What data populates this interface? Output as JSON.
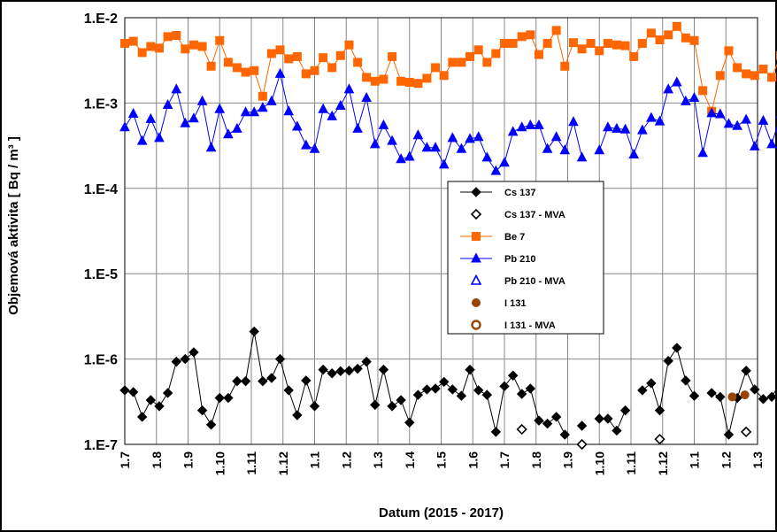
{
  "chart_data": {
    "type": "scatter",
    "xlabel": "Datum  (2015 - 2017)",
    "ylabel": "Objemová aktivita  [ Bq / m³ ]",
    "yscale": "log",
    "ylim": [
      1e-07,
      0.01
    ],
    "ytick_labels": [
      "1.E-2",
      "1.E-3",
      "1.E-4",
      "1.E-5",
      "1.E-6",
      "1.E-7"
    ],
    "xtick_labels": [
      "1.7",
      "1.8",
      "1.9",
      "1.10",
      "1.11",
      "1.12",
      "1.1",
      "1.2",
      "1.3",
      "1.4",
      "1.5",
      "1.6",
      "1.7",
      "1.8",
      "1.9",
      "1.10",
      "1.11",
      "1.12",
      "1.1",
      "1.2",
      "1.3"
    ],
    "grid": true,
    "legend_position": "center",
    "colors": {
      "cs137": "#000000",
      "be7": "#ff6600",
      "pb210": "#0000ff",
      "i131": "#994400"
    },
    "series": [
      {
        "name": "Cs 137",
        "key": "cs137",
        "marker": "diamond",
        "filled": true,
        "line": true,
        "t": [
          0,
          0.27,
          0.55,
          0.82,
          1.09,
          1.36,
          1.63,
          1.91,
          2.18,
          2.45,
          2.73,
          3.0,
          3.27,
          3.55,
          3.82,
          4.09,
          4.36,
          4.64,
          4.91,
          5.18,
          5.45,
          5.73,
          6.0,
          6.27,
          6.55,
          6.82,
          7.09,
          7.36,
          7.64,
          7.91,
          8.18,
          8.45,
          8.73,
          9.0,
          9.27,
          9.55,
          9.82,
          10.09,
          10.36,
          10.64,
          10.91,
          11.18,
          11.45,
          11.73,
          12.0,
          12.27,
          12.55,
          12.82,
          13.09,
          13.36,
          13.64,
          13.91,
          14.18,
          14.45,
          14.73,
          15.0,
          15.27,
          15.55,
          15.82,
          16.09,
          16.36,
          16.64,
          16.91,
          17.18,
          17.45,
          17.73,
          18.0,
          18.27,
          18.55,
          18.82,
          19.09,
          19.36,
          19.64,
          19.91,
          20.18,
          20.45,
          20.73
        ],
        "values": [
          4.3e-07,
          4.1e-07,
          2.1e-07,
          3.3e-07,
          2.8e-07,
          4e-07,
          9.3e-07,
          1e-06,
          1.2e-06,
          2.5e-07,
          1.7e-07,
          3.5e-07,
          3.5e-07,
          5.5e-07,
          5.5e-07,
          2.1e-06,
          5.5e-07,
          6e-07,
          1e-06,
          4.3e-07,
          2.2e-07,
          5.6e-07,
          2.8e-07,
          7.5e-07,
          6.8e-07,
          7.2e-07,
          7.3e-07,
          7.7e-07,
          9.3e-07,
          2.9e-07,
          7.5e-07,
          2.8e-07,
          3.3e-07,
          1.8e-07,
          3.8e-07,
          4.4e-07,
          4.5e-07,
          5.4e-07,
          4.4e-07,
          3.7e-07,
          7.5e-07,
          4.3e-07,
          3.8e-07,
          1.4e-07,
          4.8e-07,
          6.4e-07,
          3.9e-07,
          4.5e-07,
          1.9e-07,
          1.75e-07,
          2.1e-07,
          1.3e-07,
          null,
          1.65e-07,
          null,
          2e-07,
          2e-07,
          1.45e-07,
          2.5e-07,
          null,
          4.3e-07,
          5.2e-07,
          2.5e-07,
          9.5e-07,
          1.35e-06,
          5.6e-07,
          3.7e-07,
          null,
          4e-07,
          3.6e-07,
          1.3e-07,
          3.5e-07,
          7.3e-07,
          4.4e-07,
          3.4e-07,
          3.6e-07,
          5.4e-07
        ]
      },
      {
        "name": "Cs 137 - MVA",
        "key": "cs137",
        "marker": "diamond",
        "filled": false,
        "line": false,
        "t": [
          12.55,
          14.45,
          15.55,
          16.91,
          19.64
        ],
        "values": [
          1.5e-07,
          1e-07,
          null,
          1.15e-07,
          1.4e-07
        ]
      },
      {
        "name": "Be 7",
        "key": "be7",
        "marker": "square",
        "filled": true,
        "line": true,
        "t": [
          0,
          0.27,
          0.55,
          0.82,
          1.09,
          1.36,
          1.63,
          1.91,
          2.18,
          2.45,
          2.73,
          3.0,
          3.27,
          3.55,
          3.82,
          4.09,
          4.36,
          4.64,
          4.91,
          5.18,
          5.45,
          5.73,
          6.0,
          6.27,
          6.55,
          6.82,
          7.09,
          7.36,
          7.64,
          7.91,
          8.18,
          8.45,
          8.73,
          9.0,
          9.27,
          9.55,
          9.82,
          10.09,
          10.36,
          10.64,
          10.91,
          11.18,
          11.45,
          11.73,
          12.0,
          12.27,
          12.55,
          12.82,
          13.09,
          13.36,
          13.64,
          13.91,
          14.18,
          14.45,
          14.73,
          15.0,
          15.27,
          15.55,
          15.82,
          16.09,
          16.36,
          16.64,
          16.91,
          17.18,
          17.45,
          17.73,
          18.0,
          18.27,
          18.55,
          18.82,
          19.09,
          19.36,
          19.64,
          19.91,
          20.18,
          20.45,
          20.73
        ],
        "values": [
          0.005,
          0.0053,
          0.0039,
          0.0046,
          0.0044,
          0.006,
          0.0062,
          0.0043,
          0.0048,
          0.0046,
          0.0027,
          0.0054,
          0.003,
          0.0026,
          0.0023,
          0.0024,
          0.0012,
          0.0038,
          0.0042,
          0.0033,
          0.0035,
          0.0022,
          0.0024,
          0.0034,
          0.0026,
          0.0036,
          0.0048,
          0.003,
          0.002,
          0.0018,
          0.0019,
          0.0035,
          0.0018,
          0.00175,
          0.0017,
          0.00195,
          0.0026,
          0.0021,
          0.003,
          0.003,
          0.0035,
          0.0042,
          0.003,
          0.0038,
          0.005,
          0.005,
          0.006,
          0.0063,
          0.0037,
          0.005,
          0.0071,
          0.0027,
          0.0051,
          0.0043,
          0.005,
          0.0041,
          0.005,
          0.0048,
          0.0047,
          0.0035,
          0.005,
          0.0066,
          0.0055,
          0.0063,
          0.0079,
          0.0058,
          0.0054,
          0.0014,
          0.0008,
          0.0021,
          0.0041,
          0.0026,
          0.0022,
          0.0021,
          0.0025,
          0.002,
          0.0036
        ]
      },
      {
        "name": "Pb 210",
        "key": "pb210",
        "marker": "triangle",
        "filled": true,
        "line": true,
        "t": [
          0,
          0.27,
          0.55,
          0.82,
          1.09,
          1.36,
          1.63,
          1.91,
          2.18,
          2.45,
          2.73,
          3.0,
          3.27,
          3.55,
          3.82,
          4.09,
          4.36,
          4.64,
          4.91,
          5.18,
          5.45,
          5.73,
          6.0,
          6.27,
          6.55,
          6.82,
          7.09,
          7.36,
          7.64,
          7.91,
          8.18,
          8.45,
          8.73,
          9.0,
          9.27,
          9.55,
          9.82,
          10.09,
          10.36,
          10.64,
          10.91,
          11.18,
          11.45,
          11.73,
          12.0,
          12.27,
          12.55,
          12.82,
          13.09,
          13.36,
          13.64,
          13.91,
          14.18,
          14.45,
          14.73,
          15.0,
          15.27,
          15.55,
          15.82,
          16.09,
          16.36,
          16.64,
          16.91,
          17.18,
          17.45,
          17.73,
          18.0,
          18.27,
          18.55,
          18.82,
          19.09,
          19.36,
          19.64,
          19.91,
          20.18,
          20.45,
          20.73
        ],
        "values": [
          0.00052,
          0.00075,
          0.00036,
          0.00065,
          0.00039,
          0.00095,
          0.00145,
          0.00058,
          0.00066,
          0.00105,
          0.0003,
          0.00085,
          0.00043,
          0.0005,
          0.00078,
          0.00078,
          0.00088,
          0.00105,
          0.0022,
          0.0008,
          0.00053,
          0.00032,
          0.00029,
          0.00085,
          0.0007,
          0.00093,
          0.00145,
          0.0005,
          0.00115,
          0.00033,
          0.00055,
          0.00036,
          0.00022,
          0.000235,
          0.00042,
          0.0003,
          0.0003,
          0.00019,
          0.00039,
          0.00029,
          0.00038,
          0.0004,
          0.00023,
          0.00016,
          0.0002,
          0.00046,
          0.00052,
          0.00055,
          0.00055,
          0.00029,
          0.0004,
          0.00028,
          0.0006,
          0.00023,
          null,
          0.00028,
          0.00052,
          0.0005,
          0.00049,
          0.00025,
          0.00048,
          0.00067,
          0.00061,
          0.00145,
          0.00175,
          0.00105,
          0.00115,
          0.00026,
          0.00076,
          0.00074,
          0.00057,
          0.00054,
          0.00064,
          0.00031,
          0.00062,
          0.00033,
          0.00074
        ]
      },
      {
        "name": "Pb 210 - MVA",
        "key": "pb210",
        "marker": "triangle",
        "filled": false,
        "line": false,
        "t": [],
        "values": []
      },
      {
        "name": "I 131",
        "key": "i131",
        "marker": "circle",
        "filled": true,
        "line": false,
        "t": [
          19.2,
          19.6
        ],
        "values": [
          3.6e-07,
          3.8e-07
        ]
      },
      {
        "name": "I 131 - MVA",
        "key": "i131",
        "marker": "circle",
        "filled": false,
        "line": false,
        "t": [],
        "values": []
      }
    ]
  }
}
